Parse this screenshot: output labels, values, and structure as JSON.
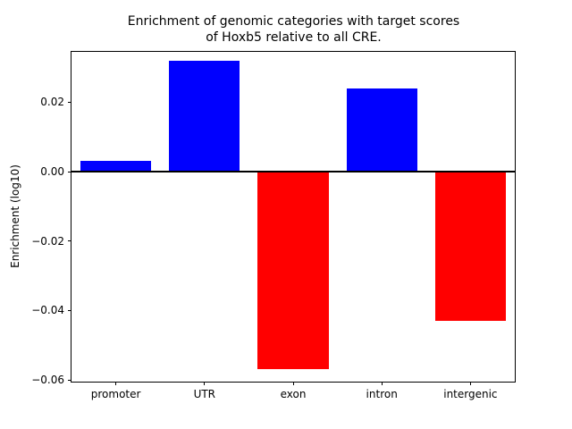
{
  "chart_data": {
    "type": "bar",
    "title": "Enrichment of genomic categories with target scores\nof Hoxb5 relative to all CRE.",
    "xlabel": "",
    "ylabel": "Enrichment (log10)",
    "categories": [
      "promoter",
      "UTR",
      "exon",
      "intron",
      "intergenic"
    ],
    "values": [
      0.003,
      0.032,
      -0.057,
      0.024,
      -0.043
    ],
    "bar_colors": [
      "#0000ff",
      "#0000ff",
      "#ff0000",
      "#0000ff",
      "#ff0000"
    ],
    "positive_color": "#0000ff",
    "negative_color": "#ff0000",
    "ylim": [
      -0.0605,
      0.0345
    ],
    "yticks": [
      {
        "value": 0.02,
        "label": "0.02"
      },
      {
        "value": 0.0,
        "label": "0.00"
      },
      {
        "value": -0.02,
        "label": "−0.02"
      },
      {
        "value": -0.04,
        "label": "−0.04"
      },
      {
        "value": -0.06,
        "label": "−0.06"
      }
    ],
    "zero_line": {
      "value": 0,
      "color": "#000000"
    },
    "grid": false,
    "legend": null,
    "bar_width_fraction": 0.8,
    "axis_color": "#000000",
    "background": "#ffffff"
  }
}
